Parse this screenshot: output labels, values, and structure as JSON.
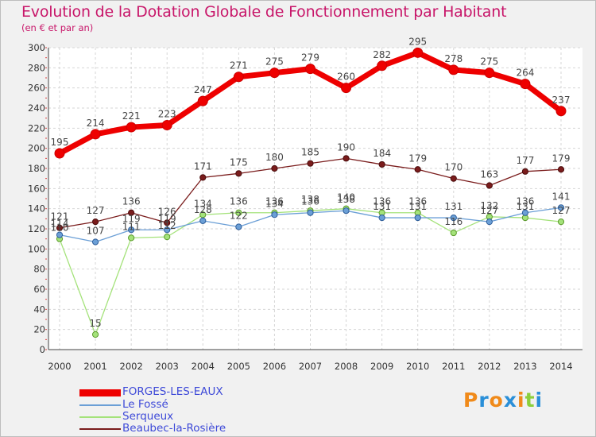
{
  "chart_data": {
    "type": "line",
    "title": "Evolution de la Dotation Globale de Fonctionnement par Habitant",
    "subtitle": "(en € et par an)",
    "x": [
      "2000",
      "2001",
      "2002",
      "2003",
      "2004",
      "2005",
      "2006",
      "2007",
      "2008",
      "2009",
      "2010",
      "2011",
      "2012",
      "2013",
      "2014"
    ],
    "ylim": [
      0,
      300
    ],
    "yticks": [
      0,
      20,
      40,
      60,
      80,
      100,
      120,
      140,
      160,
      180,
      200,
      220,
      240,
      260,
      280,
      300
    ],
    "grid": true,
    "legend_position": "bottom-left",
    "series": [
      {
        "name": "FORGES-LES-EAUX",
        "color": "#ee0000",
        "values": [
          195,
          214,
          221,
          223,
          247,
          271,
          275,
          279,
          260,
          282,
          295,
          278,
          275,
          264,
          237
        ]
      },
      {
        "name": "Le Fossé",
        "color": "#6b9fd6",
        "values": [
          114,
          107,
          119,
          119,
          128,
          122,
          134,
          136,
          138,
          131,
          131,
          131,
          127,
          136,
          141
        ]
      },
      {
        "name": "Serqueux",
        "color": "#a4e27a",
        "values": [
          110,
          15,
          111,
          112,
          134,
          136,
          136,
          138,
          140,
          136,
          136,
          116,
          132,
          131,
          127
        ]
      },
      {
        "name": "Beaubec-la-Rosière",
        "color": "#7a1c1c",
        "values": [
          121,
          127,
          136,
          126,
          171,
          175,
          180,
          185,
          190,
          184,
          179,
          170,
          163,
          177,
          179
        ]
      }
    ]
  },
  "logo": {
    "text": "Proxiti",
    "colors": [
      "#f08a1a",
      "#2a8fd8",
      "#f08a1a",
      "#2a8fd8",
      "#f08a1a",
      "#8ccf3c",
      "#2a8fd8"
    ]
  }
}
